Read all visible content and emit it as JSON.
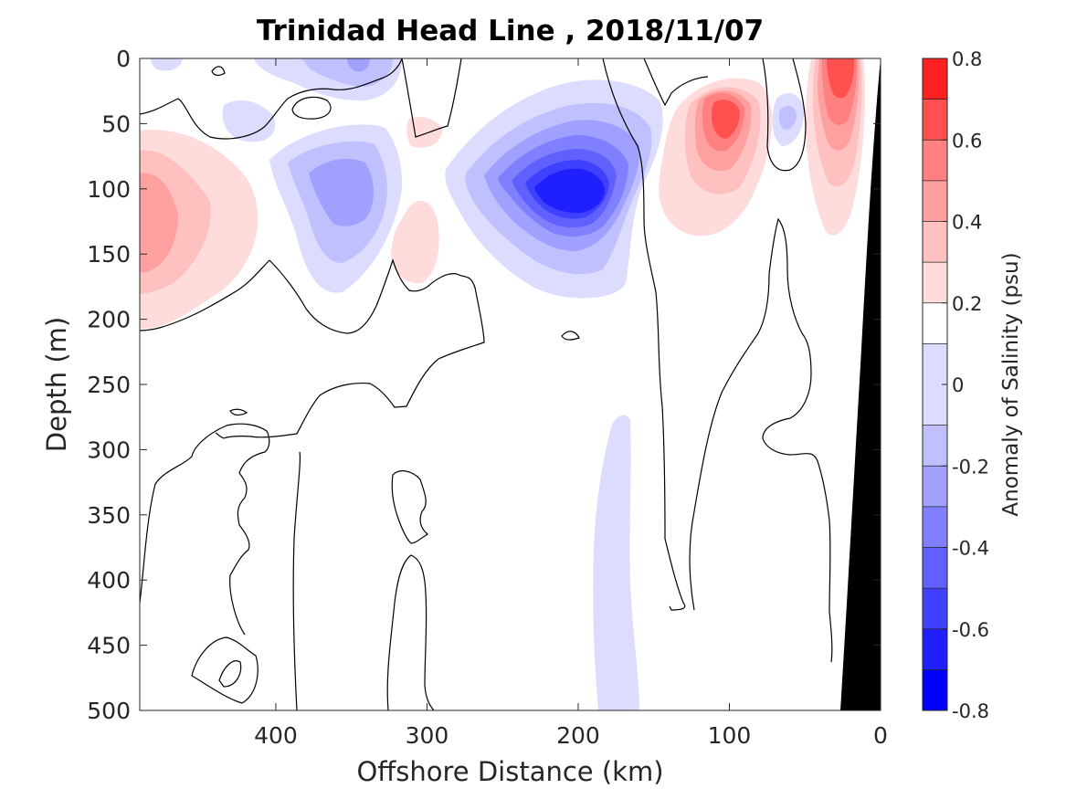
{
  "chart_data": {
    "type": "heatmap",
    "subtype": "filled-contour",
    "title": "Trinidad Head Line , 2018/11/07",
    "xlabel": "Offshore Distance (km)",
    "ylabel": "Depth (m)",
    "colorbar_label": "Anomaly of Salinity (psu)",
    "xlim": [
      490,
      0
    ],
    "ylim": [
      0,
      500
    ],
    "x_reversed": true,
    "y_reversed": true,
    "x_ticks": [
      400,
      300,
      200,
      100,
      0
    ],
    "y_ticks": [
      0,
      50,
      100,
      150,
      200,
      250,
      300,
      350,
      400,
      450,
      500
    ],
    "colorbar_ticks": [
      -0.8,
      -0.6,
      -0.4,
      -0.2,
      0,
      0.2,
      0.4,
      0.6,
      0.8
    ],
    "colorbar_levels": [
      -0.8,
      -0.7,
      -0.6,
      -0.5,
      -0.4,
      -0.3,
      -0.2,
      -0.1,
      0.1,
      0.2,
      0.3,
      0.4,
      0.5,
      0.6,
      0.7,
      0.8
    ],
    "colorbar_colors": [
      "#0000ff",
      "#2020ff",
      "#4040ff",
      "#6060ff",
      "#8080ff",
      "#a0a0ff",
      "#c0c0ff",
      "#dcdcff",
      "#ffffff",
      "#ffdcdc",
      "#ffc0c0",
      "#ffa0a0",
      "#ff8080",
      "#ff5050",
      "#ff2020",
      "#ff0000"
    ],
    "grid": false,
    "bathymetry_color": "#000000",
    "features": [
      {
        "name": "offshore salty core",
        "x": 470,
        "y": 120,
        "anomaly": 0.4
      },
      {
        "name": "fresh anomaly near 350 km",
        "x": 355,
        "y": 100,
        "anomaly": -0.3
      },
      {
        "name": "weak salty patch near 310 km",
        "x": 310,
        "y": 140,
        "anomaly": 0.2
      },
      {
        "name": "main fresh core",
        "x": 200,
        "y": 95,
        "anomaly": -0.7
      },
      {
        "name": "salty core near 100 km",
        "x": 100,
        "y": 45,
        "anomaly": 0.6
      },
      {
        "name": "small fresh eddy near 55 km",
        "x": 55,
        "y": 45,
        "anomaly": -0.2
      },
      {
        "name": "nearshore salty band",
        "x": 20,
        "y": 40,
        "anomaly": 0.5
      },
      {
        "name": "deep fresh streak",
        "x": 180,
        "y": 390,
        "anomaly": -0.1
      }
    ]
  }
}
